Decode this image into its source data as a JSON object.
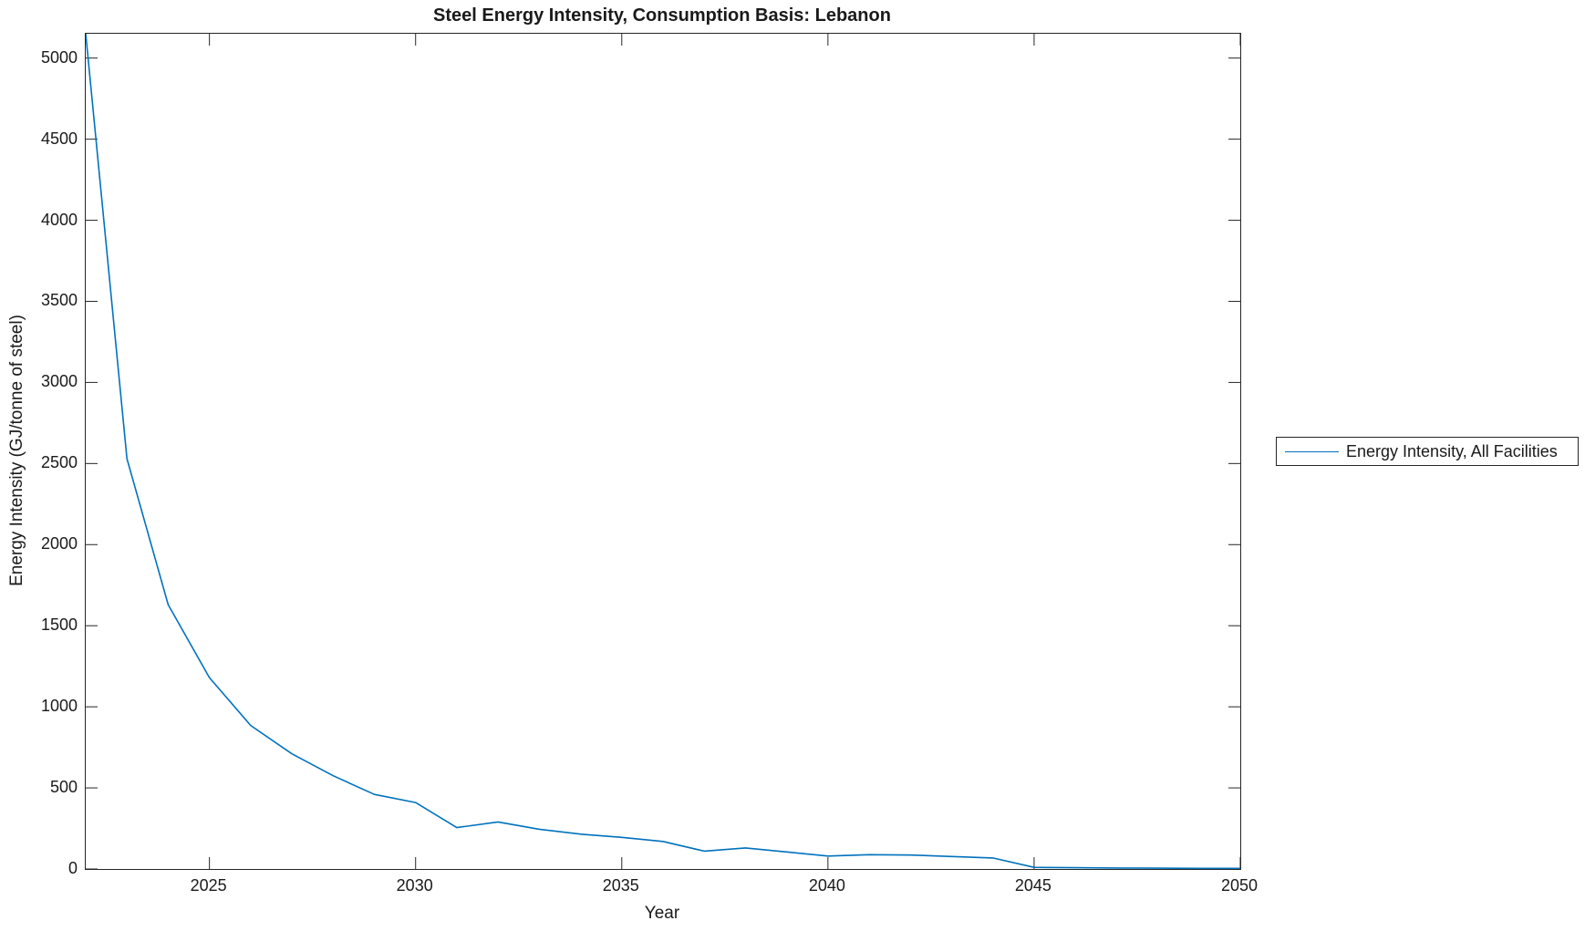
{
  "chart_data": {
    "type": "line",
    "title": "Steel Energy Intensity, Consumption Basis: Lebanon",
    "xlabel": "Year",
    "ylabel": "Energy Intensity (GJ/tonne of steel)",
    "xlim": [
      2022,
      2050
    ],
    "ylim": [
      0,
      5150
    ],
    "x_ticks": [
      2025,
      2030,
      2035,
      2040,
      2045,
      2050
    ],
    "y_ticks": [
      0,
      500,
      1000,
      1500,
      2000,
      2500,
      3000,
      3500,
      4000,
      4500,
      5000
    ],
    "grid": "off",
    "box": "on",
    "axis_color": "#262626",
    "legend": {
      "position": "outside-right",
      "entries": [
        {
          "label": "Energy Intensity, All Facilities",
          "color": "#0072BD"
        }
      ]
    },
    "series": [
      {
        "name": "Energy Intensity, All Facilities",
        "color": "#0072BD",
        "x": [
          2022,
          2023,
          2024,
          2025,
          2026,
          2027,
          2028,
          2029,
          2030,
          2031,
          2032,
          2033,
          2034,
          2035,
          2036,
          2037,
          2038,
          2039,
          2040,
          2041,
          2042,
          2043,
          2044,
          2045,
          2046,
          2047,
          2048,
          2049,
          2050
        ],
        "values": [
          5150,
          2530,
          1630,
          1180,
          885,
          710,
          575,
          460,
          410,
          255,
          290,
          245,
          215,
          195,
          170,
          110,
          130,
          105,
          80,
          88,
          86,
          77,
          68,
          10,
          8,
          6,
          5,
          4,
          4
        ]
      }
    ]
  }
}
